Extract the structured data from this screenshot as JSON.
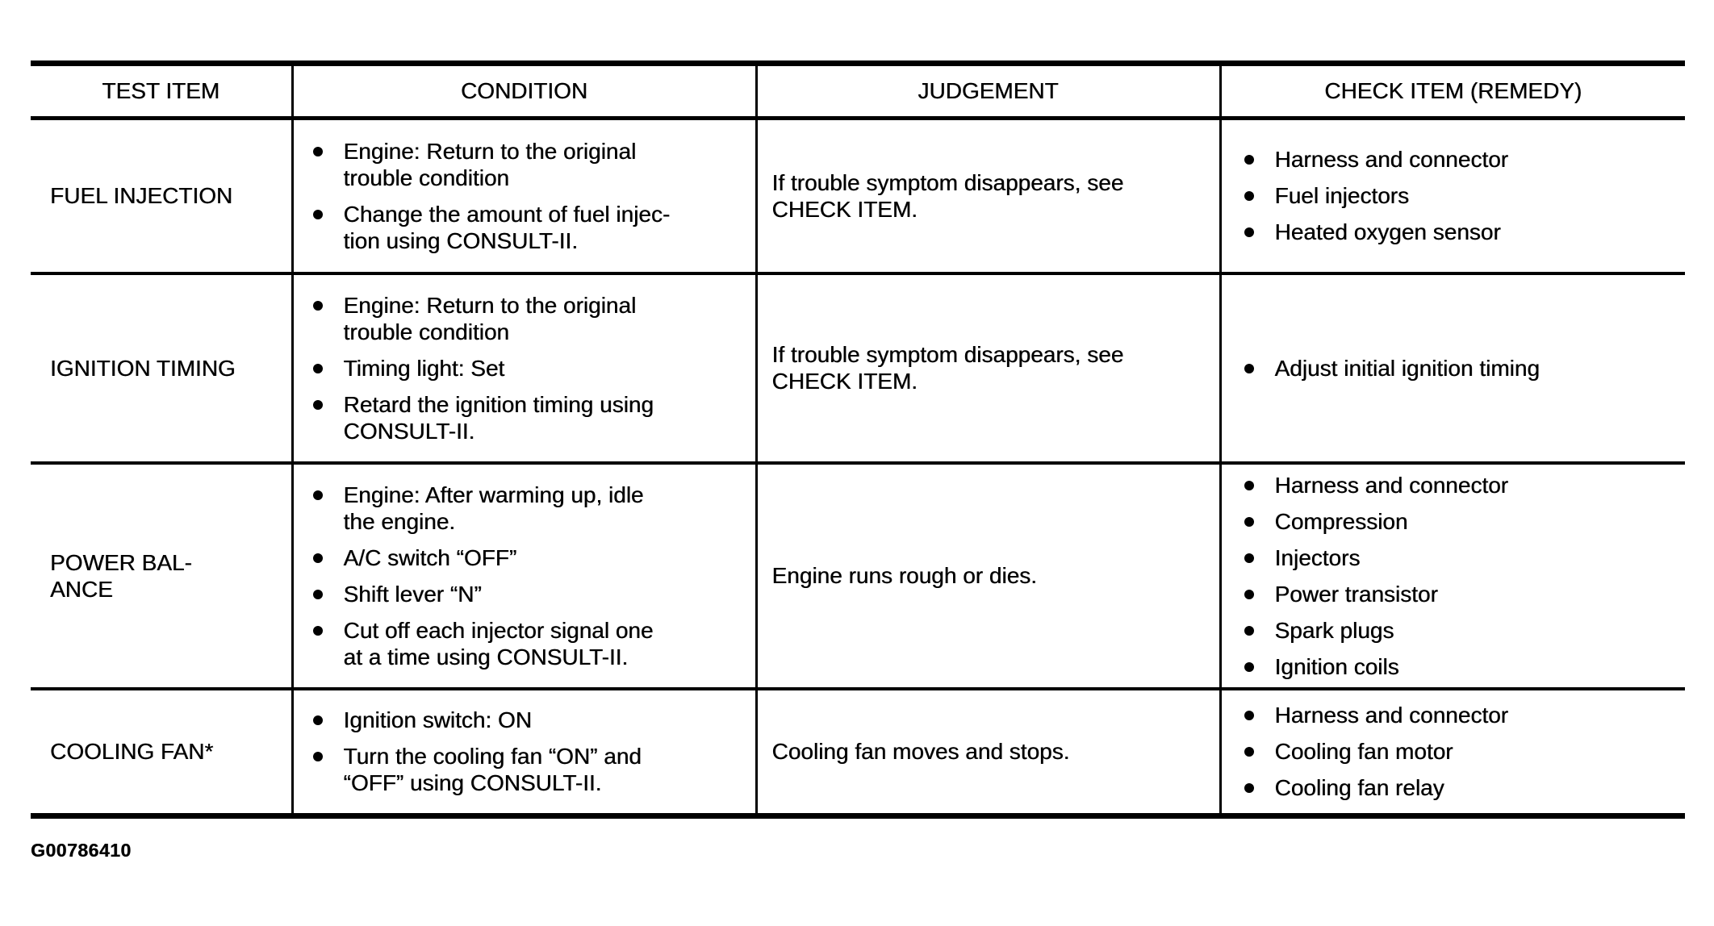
{
  "figure_id": "G00786410",
  "table": {
    "headers": [
      "TEST ITEM",
      "CONDITION",
      "JUDGEMENT",
      "CHECK ITEM (REMEDY)"
    ],
    "rows": [
      {
        "test_item": "FUEL INJECTION",
        "condition": [
          "Engine: Return to the original\ntrouble condition",
          "Change the amount of fuel injec-\ntion using CONSULT-II."
        ],
        "judgement": "If trouble symptom disappears, see\nCHECK ITEM.",
        "check_item": [
          "Harness and connector",
          "Fuel injectors",
          "Heated oxygen sensor"
        ]
      },
      {
        "test_item": "IGNITION TIMING",
        "condition": [
          "Engine: Return to the original\ntrouble condition",
          "Timing light: Set",
          "Retard the ignition timing using\nCONSULT-II."
        ],
        "judgement": "If trouble symptom disappears, see\nCHECK ITEM.",
        "check_item": [
          "Adjust initial ignition timing"
        ]
      },
      {
        "test_item": "POWER BAL-\nANCE",
        "condition": [
          "Engine: After warming up, idle\nthe engine.",
          "A/C switch “OFF”",
          "Shift lever “N”",
          "Cut off each injector signal one\nat a time using CONSULT-II."
        ],
        "judgement": "Engine runs rough or dies.",
        "check_item": [
          "Harness and connector",
          "Compression",
          "Injectors",
          "Power transistor",
          "Spark plugs",
          "Ignition coils"
        ]
      },
      {
        "test_item": "COOLING FAN*",
        "condition": [
          "Ignition switch: ON",
          "Turn the cooling fan “ON” and\n“OFF” using CONSULT-II."
        ],
        "judgement": "Cooling fan moves and stops.",
        "check_item": [
          "Harness and connector",
          "Cooling fan motor",
          "Cooling fan relay"
        ]
      }
    ]
  }
}
